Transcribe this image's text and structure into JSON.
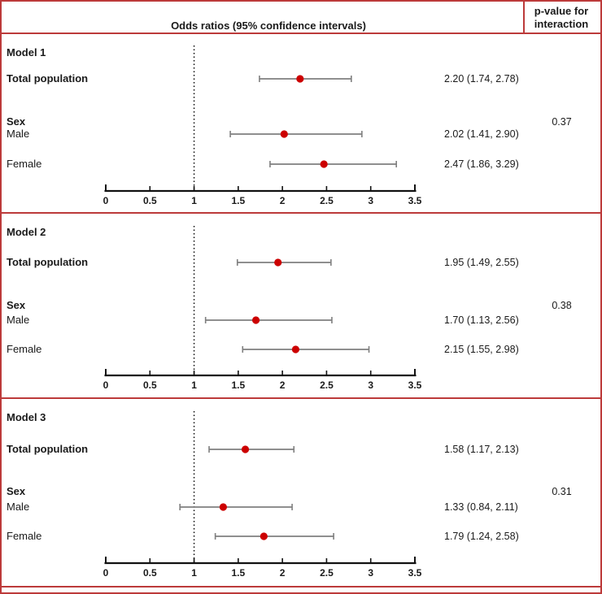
{
  "header": {
    "title": "Odds ratios (95% confidence intervals)",
    "pvalue_label": "p-value for interaction"
  },
  "colors": {
    "frame_red": "#bc3a3a",
    "marker_red": "#cc0000",
    "ci_gray": "#7f7f7f",
    "axis_black": "#111111"
  },
  "chart_data": [
    {
      "type": "forest",
      "title": "Model 1",
      "group_label": "Sex",
      "p_interaction": "0.37",
      "axis": {
        "min": 0,
        "max": 3.5,
        "ticks": [
          0,
          0.5,
          1,
          1.5,
          2,
          2.5,
          3,
          3.5
        ],
        "reference_line": 1
      },
      "rows": [
        {
          "label": "Total population",
          "bold": true,
          "or": 2.2,
          "ci_low": 1.74,
          "ci_high": 2.78,
          "display": "2.20 (1.74, 2.78)"
        },
        {
          "label": "Male",
          "bold": false,
          "or": 2.02,
          "ci_low": 1.41,
          "ci_high": 2.9,
          "display": "2.02 (1.41, 2.90)"
        },
        {
          "label": "Female",
          "bold": false,
          "or": 2.47,
          "ci_low": 1.86,
          "ci_high": 3.29,
          "display": "2.47 (1.86, 3.29)"
        }
      ]
    },
    {
      "type": "forest",
      "title": "Model 2",
      "group_label": "Sex",
      "p_interaction": "0.38",
      "axis": {
        "min": 0,
        "max": 3.5,
        "ticks": [
          0,
          0.5,
          1,
          1.5,
          2,
          2.5,
          3,
          3.5
        ],
        "reference_line": 1
      },
      "rows": [
        {
          "label": "Total population",
          "bold": true,
          "or": 1.95,
          "ci_low": 1.49,
          "ci_high": 2.55,
          "display": "1.95 (1.49, 2.55)"
        },
        {
          "label": "Male",
          "bold": false,
          "or": 1.7,
          "ci_low": 1.13,
          "ci_high": 2.56,
          "display": "1.70 (1.13, 2.56)"
        },
        {
          "label": "Female",
          "bold": false,
          "or": 2.15,
          "ci_low": 1.55,
          "ci_high": 2.98,
          "display": "2.15 (1.55, 2.98)"
        }
      ]
    },
    {
      "type": "forest",
      "title": "Model 3",
      "group_label": "Sex",
      "p_interaction": "0.31",
      "axis": {
        "min": 0,
        "max": 3.5,
        "ticks": [
          0,
          0.5,
          1,
          1.5,
          2,
          2.5,
          3,
          3.5
        ],
        "reference_line": 1
      },
      "rows": [
        {
          "label": "Total population",
          "bold": true,
          "or": 1.58,
          "ci_low": 1.17,
          "ci_high": 2.13,
          "display": "1.58 (1.17, 2.13)"
        },
        {
          "label": "Male",
          "bold": false,
          "or": 1.33,
          "ci_low": 0.84,
          "ci_high": 2.11,
          "display": "1.33 (0.84, 2.11)"
        },
        {
          "label": "Female",
          "bold": false,
          "or": 1.79,
          "ci_low": 1.24,
          "ci_high": 2.58,
          "display": "1.79 (1.24, 2.58)"
        }
      ]
    }
  ]
}
